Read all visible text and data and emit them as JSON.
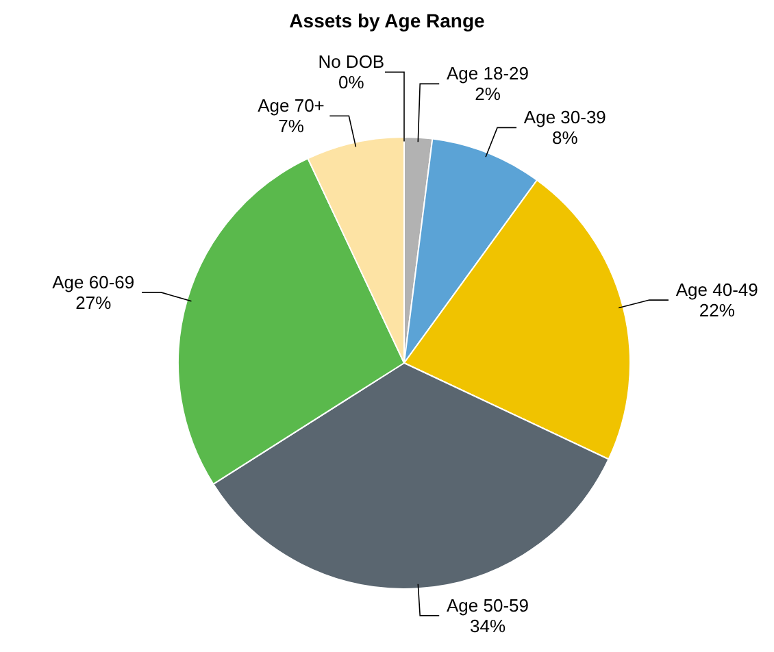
{
  "chart_data": {
    "type": "pie",
    "title": "Assets by Age Range",
    "categories": [
      "No DOB",
      "Age 18-29",
      "Age 30-39",
      "Age 40-49",
      "Age 50-59",
      "Age 60-69",
      "Age 70+"
    ],
    "values": [
      0,
      2,
      8,
      22,
      34,
      27,
      7
    ],
    "colors": [
      "#d9d9d9",
      "#b2b2b2",
      "#5ba3d6",
      "#f0c300",
      "#5a6670",
      "#5ab94c",
      "#fde3a4"
    ],
    "value_labels": [
      "0%",
      "2%",
      "8%",
      "22%",
      "34%",
      "27%",
      "7%"
    ]
  }
}
